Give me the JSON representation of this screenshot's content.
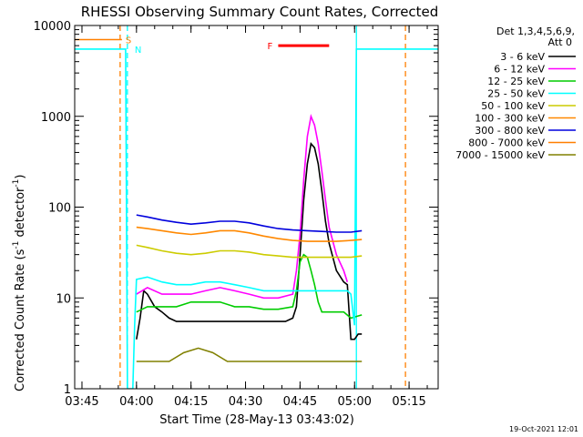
{
  "chart_data": {
    "type": "line",
    "title": "RHESSI Observing Summary Count Rates, Corrected",
    "xlabel": "Start Time (28-May-13 03:43:02)",
    "ylabel": "Corrected Count Rate (s⁻¹ detector⁻¹)",
    "ylabel_main": "Corrected Count Rate (s",
    "ylabel_sup1": "-1",
    "ylabel_mid": " detector",
    "ylabel_sup2": "-1",
    "ylabel_end": ")",
    "yscale": "log",
    "ylim": [
      1,
      10000
    ],
    "xlim_minutes": [
      0,
      100
    ],
    "x_ticks": [
      {
        "label": "03:45",
        "minute": 2
      },
      {
        "label": "04:00",
        "minute": 17
      },
      {
        "label": "04:15",
        "minute": 32
      },
      {
        "label": "04:30",
        "minute": 47
      },
      {
        "label": "04:45",
        "minute": 62
      },
      {
        "label": "05:00",
        "minute": 77
      },
      {
        "label": "05:15",
        "minute": 92
      }
    ],
    "y_ticks": [
      {
        "label": "1",
        "value": 1
      },
      {
        "label": "10",
        "value": 10
      },
      {
        "label": "100",
        "value": 100
      },
      {
        "label": "1000",
        "value": 1000
      },
      {
        "label": "10000",
        "value": 10000
      }
    ],
    "legend_header": [
      "Det 1,3,4,5,6,9,",
      "Att 0"
    ],
    "series": [
      {
        "name": "3 - 6 keV",
        "color": "#000000",
        "points": [
          [
            17,
            3.5
          ],
          [
            18,
            6
          ],
          [
            19,
            12
          ],
          [
            20,
            11
          ],
          [
            22,
            8
          ],
          [
            24,
            7
          ],
          [
            26,
            6
          ],
          [
            28,
            5.5
          ],
          [
            30,
            5.5
          ],
          [
            34,
            5.5
          ],
          [
            38,
            5.5
          ],
          [
            42,
            5.5
          ],
          [
            46,
            5.5
          ],
          [
            50,
            5.5
          ],
          [
            54,
            5.5
          ],
          [
            58,
            5.5
          ],
          [
            60,
            6
          ],
          [
            61,
            8
          ],
          [
            62,
            30
          ],
          [
            63,
            120
          ],
          [
            64,
            300
          ],
          [
            65,
            500
          ],
          [
            66,
            450
          ],
          [
            67,
            300
          ],
          [
            68,
            150
          ],
          [
            69,
            70
          ],
          [
            70,
            40
          ],
          [
            72,
            20
          ],
          [
            74,
            15
          ],
          [
            75,
            14
          ],
          [
            76,
            3.5
          ],
          [
            77,
            3.5
          ],
          [
            78,
            4
          ],
          [
            79,
            4
          ]
        ]
      },
      {
        "name": "6 - 12 keV",
        "color": "#ff00ff",
        "points": [
          [
            17,
            11
          ],
          [
            20,
            13
          ],
          [
            24,
            11
          ],
          [
            28,
            11
          ],
          [
            32,
            11
          ],
          [
            36,
            12
          ],
          [
            40,
            13
          ],
          [
            44,
            12
          ],
          [
            48,
            11
          ],
          [
            52,
            10
          ],
          [
            56,
            10
          ],
          [
            60,
            11
          ],
          [
            61,
            20
          ],
          [
            62,
            50
          ],
          [
            63,
            200
          ],
          [
            64,
            600
          ],
          [
            65,
            1000
          ],
          [
            66,
            800
          ],
          [
            67,
            500
          ],
          [
            68,
            250
          ],
          [
            69,
            120
          ],
          [
            70,
            60
          ],
          [
            72,
            30
          ],
          [
            74,
            20
          ],
          [
            75,
            15
          ]
        ]
      },
      {
        "name": "12 - 25 keV",
        "color": "#00cc00",
        "points": [
          [
            17,
            7
          ],
          [
            20,
            8
          ],
          [
            24,
            8
          ],
          [
            28,
            8
          ],
          [
            32,
            9
          ],
          [
            36,
            9
          ],
          [
            40,
            9
          ],
          [
            44,
            8
          ],
          [
            48,
            8
          ],
          [
            52,
            7.5
          ],
          [
            56,
            7.5
          ],
          [
            60,
            8
          ],
          [
            61,
            12
          ],
          [
            62,
            25
          ],
          [
            63,
            30
          ],
          [
            64,
            28
          ],
          [
            65,
            20
          ],
          [
            66,
            14
          ],
          [
            67,
            9
          ],
          [
            68,
            7
          ],
          [
            70,
            7
          ],
          [
            74,
            7
          ],
          [
            76,
            6
          ],
          [
            79,
            6.5
          ]
        ]
      },
      {
        "name": "25 - 50 keV",
        "color": "#00ffff",
        "points": [
          [
            0,
            5500
          ],
          [
            10,
            5500
          ],
          [
            14,
            5500
          ],
          [
            14.5,
            1
          ],
          [
            15,
            1
          ],
          [
            16,
            1
          ],
          [
            16.5,
            5
          ],
          [
            17,
            16
          ],
          [
            20,
            17
          ],
          [
            24,
            15
          ],
          [
            28,
            14
          ],
          [
            32,
            14
          ],
          [
            36,
            15
          ],
          [
            40,
            15
          ],
          [
            44,
            14
          ],
          [
            48,
            13
          ],
          [
            52,
            12
          ],
          [
            56,
            12
          ],
          [
            60,
            12
          ],
          [
            62,
            12
          ],
          [
            64,
            12
          ],
          [
            68,
            12
          ],
          [
            72,
            12
          ],
          [
            75,
            12
          ],
          [
            76,
            11
          ],
          [
            77,
            5
          ],
          [
            77.5,
            5500
          ],
          [
            100,
            5500
          ]
        ]
      },
      {
        "name": "50 - 100 keV",
        "color": "#cccc00",
        "points": [
          [
            17,
            38
          ],
          [
            20,
            36
          ],
          [
            24,
            33
          ],
          [
            28,
            31
          ],
          [
            32,
            30
          ],
          [
            36,
            31
          ],
          [
            40,
            33
          ],
          [
            44,
            33
          ],
          [
            48,
            32
          ],
          [
            52,
            30
          ],
          [
            56,
            29
          ],
          [
            60,
            28
          ],
          [
            64,
            28
          ],
          [
            68,
            28
          ],
          [
            72,
            28
          ],
          [
            76,
            28
          ],
          [
            79,
            29
          ]
        ]
      },
      {
        "name": "100 - 300 keV",
        "color": "#ff8800",
        "points": [
          [
            17,
            60
          ],
          [
            20,
            58
          ],
          [
            24,
            55
          ],
          [
            28,
            52
          ],
          [
            32,
            50
          ],
          [
            36,
            52
          ],
          [
            40,
            55
          ],
          [
            44,
            55
          ],
          [
            48,
            52
          ],
          [
            52,
            48
          ],
          [
            56,
            45
          ],
          [
            60,
            43
          ],
          [
            64,
            42
          ],
          [
            68,
            42
          ],
          [
            72,
            42
          ],
          [
            76,
            43
          ],
          [
            79,
            44
          ]
        ]
      },
      {
        "name": "300 - 800 keV",
        "color": "#0000dd",
        "points": [
          [
            17,
            82
          ],
          [
            20,
            78
          ],
          [
            24,
            72
          ],
          [
            28,
            68
          ],
          [
            32,
            65
          ],
          [
            36,
            67
          ],
          [
            40,
            70
          ],
          [
            44,
            70
          ],
          [
            48,
            67
          ],
          [
            52,
            62
          ],
          [
            56,
            58
          ],
          [
            60,
            56
          ],
          [
            64,
            55
          ],
          [
            68,
            54
          ],
          [
            72,
            53
          ],
          [
            76,
            53
          ],
          [
            79,
            55
          ]
        ]
      },
      {
        "name": "800 - 7000 keV",
        "color": "#ff7f00",
        "points": [
          [
            0,
            7000
          ],
          [
            13,
            7000
          ]
        ]
      },
      {
        "name": "7000 - 15000 keV",
        "color": "#808000",
        "points": [
          [
            17,
            2
          ],
          [
            22,
            2
          ],
          [
            26,
            2
          ],
          [
            30,
            2.5
          ],
          [
            34,
            2.8
          ],
          [
            38,
            2.5
          ],
          [
            42,
            2
          ],
          [
            46,
            2
          ],
          [
            50,
            2
          ],
          [
            54,
            2
          ],
          [
            58,
            2
          ],
          [
            62,
            2
          ],
          [
            66,
            2
          ],
          [
            70,
            2
          ],
          [
            74,
            2
          ],
          [
            77,
            2
          ],
          [
            79,
            2
          ]
        ]
      }
    ],
    "flags": [
      {
        "label": "S",
        "color": "#ff7f00"
      },
      {
        "label": "N",
        "color": "#00ffff"
      },
      {
        "label": "F",
        "color": "#ff0000",
        "x_range_minutes": [
          56,
          70
        ],
        "y_value": 6000
      }
    ],
    "vertical_markers": [
      {
        "minute": 12.5,
        "color": "#ff7f00",
        "style": "dashed"
      },
      {
        "minute": 14.5,
        "color": "#00ffff",
        "style": "dashed"
      },
      {
        "minute": 77.5,
        "color": "#00ffff",
        "style": "solid"
      },
      {
        "minute": 91,
        "color": "#ff7f00",
        "style": "dashed"
      }
    ],
    "footer_date": "19-Oct-2021 12:01"
  }
}
